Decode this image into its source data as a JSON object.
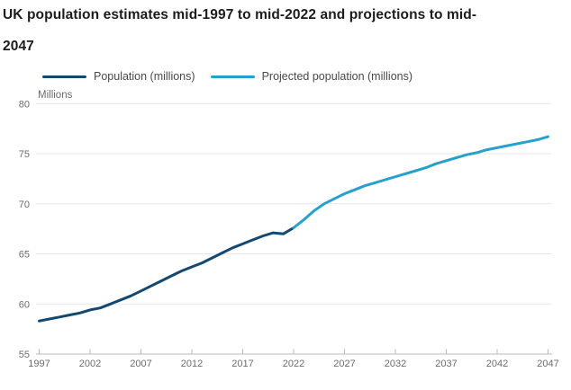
{
  "header": {
    "title_line1": "UK population estimates mid-1997 to mid-2022 and projections to mid-",
    "title_line2": "2047"
  },
  "colors": {
    "title_text": "#1c1c1c",
    "legend_text": "#48494b",
    "tick_label_text": "#6b6c6f",
    "gridline": "#e7e7e7",
    "axis_line": "#b5b9bc",
    "background": "#ffffff",
    "population_line": "#14486f",
    "projected_line": "#27a0cc"
  },
  "chart_data": {
    "type": "line",
    "title": "UK population estimates mid-1997 to mid-2022 and projections to mid-2047",
    "unit_label": "Millions",
    "xlabel": "",
    "ylabel": "Millions",
    "xlim": [
      1997,
      2047
    ],
    "ylim": [
      55,
      80
    ],
    "x_ticks": [
      1997,
      2002,
      2007,
      2012,
      2017,
      2022,
      2027,
      2032,
      2037,
      2042,
      2047
    ],
    "y_ticks": [
      55,
      60,
      65,
      70,
      75,
      80
    ],
    "grid": "horizontal",
    "legend_position": "top-left",
    "series": [
      {
        "name": "Population (millions)",
        "color": "#14486f",
        "x": [
          1997,
          1998,
          1999,
          2000,
          2001,
          2002,
          2003,
          2004,
          2005,
          2006,
          2007,
          2008,
          2009,
          2010,
          2011,
          2012,
          2013,
          2014,
          2015,
          2016,
          2017,
          2018,
          2019,
          2020,
          2021,
          2022
        ],
        "values": [
          58.3,
          58.5,
          58.7,
          58.9,
          59.1,
          59.4,
          59.6,
          60.0,
          60.4,
          60.8,
          61.3,
          61.8,
          62.3,
          62.8,
          63.3,
          63.7,
          64.1,
          64.6,
          65.1,
          65.6,
          66.0,
          66.4,
          66.8,
          67.1,
          67.0,
          67.6
        ]
      },
      {
        "name": "Projected population (millions)",
        "color": "#27a0cc",
        "x": [
          2022,
          2023,
          2024,
          2025,
          2026,
          2027,
          2028,
          2029,
          2030,
          2031,
          2032,
          2033,
          2034,
          2035,
          2036,
          2037,
          2038,
          2039,
          2040,
          2041,
          2042,
          2043,
          2044,
          2045,
          2046,
          2047
        ],
        "values": [
          67.6,
          68.4,
          69.3,
          70.0,
          70.5,
          71.0,
          71.4,
          71.8,
          72.1,
          72.4,
          72.7,
          73.0,
          73.3,
          73.6,
          74.0,
          74.3,
          74.6,
          74.9,
          75.1,
          75.4,
          75.6,
          75.8,
          76.0,
          76.2,
          76.4,
          76.7
        ]
      }
    ]
  }
}
